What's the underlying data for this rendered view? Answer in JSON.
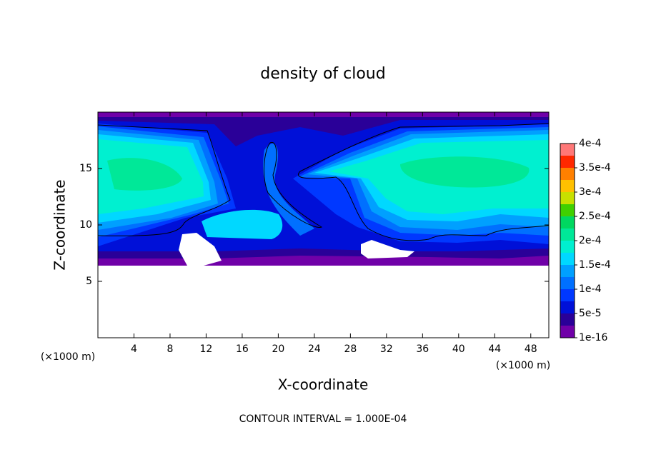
{
  "chart_data": {
    "type": "contour",
    "title": "density of cloud",
    "x_label": "X-coordinate",
    "y_label": "Z-coordinate",
    "x_unit": "(×1000 m)",
    "annotation": "CONTOUR INTERVAL = 1.000E-04",
    "xlim": [
      0,
      50
    ],
    "xticks": [
      4,
      8,
      12,
      16,
      20,
      24,
      28,
      32,
      36,
      40,
      44,
      48
    ],
    "ylim": [
      0,
      20
    ],
    "yticks": [
      5,
      10,
      15
    ],
    "zlim": [
      1e-16,
      0.0004
    ],
    "zticks": [
      {
        "value": 1e-16,
        "label": "1e-16"
      },
      {
        "value": 5e-05,
        "label": "5e-5"
      },
      {
        "value": 0.0001,
        "label": "1e-4"
      },
      {
        "value": 0.00015,
        "label": "1.5e-4"
      },
      {
        "value": 0.0002,
        "label": "2e-4"
      },
      {
        "value": 0.00025,
        "label": "2.5e-4"
      },
      {
        "value": 0.0003,
        "label": "3e-4"
      },
      {
        "value": 0.00035,
        "label": "3.5e-4"
      },
      {
        "value": 0.0004,
        "label": "4e-4"
      }
    ],
    "colors": [
      "#7000a8",
      "#2a0098",
      "#0010d8",
      "#0038ff",
      "#0070ff",
      "#00a0ff",
      "#00d8ff",
      "#00f0d0",
      "#00e898",
      "#00d860",
      "#40d000",
      "#c8e000",
      "#ffc000",
      "#ff8000",
      "#ff2800",
      "#ff7878"
    ]
  }
}
